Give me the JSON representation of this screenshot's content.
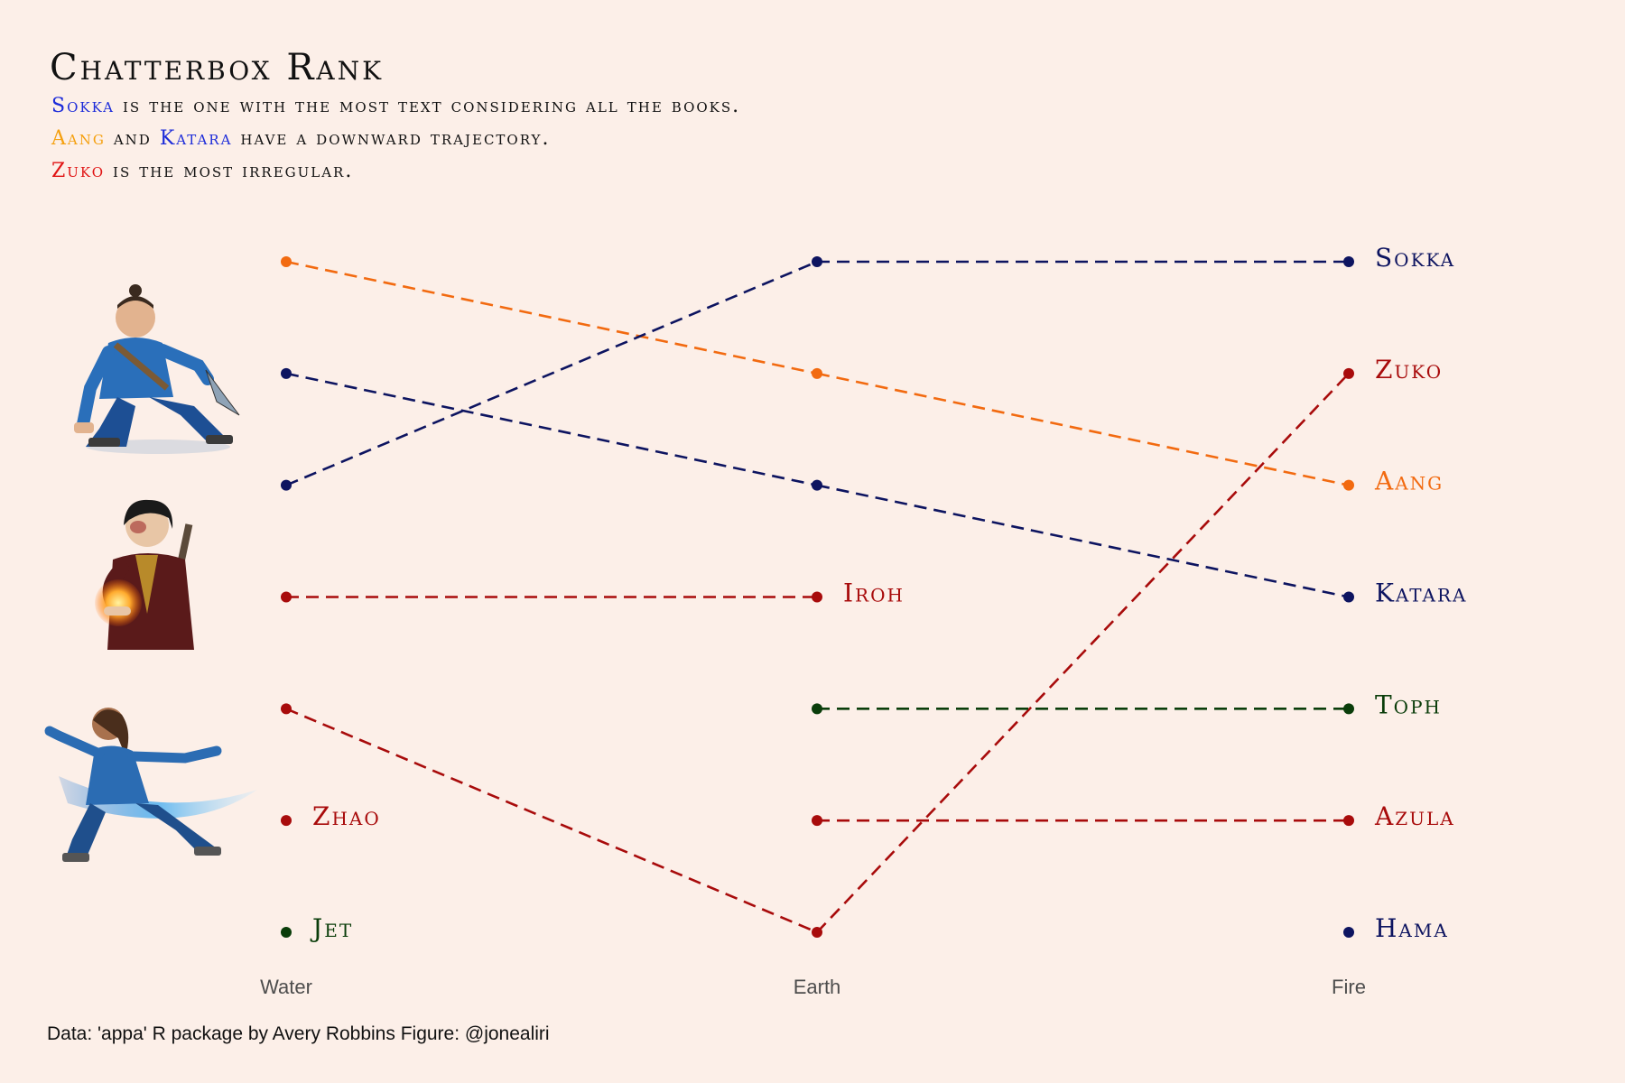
{
  "title": "Chatterbox Rank",
  "subtitle_lines": [
    [
      {
        "text": "Sokka",
        "color": "#1c2bd9"
      },
      {
        "text": " is the one with the most text considering all the books.",
        "color": "#111111"
      }
    ],
    [
      {
        "text": "Aang",
        "color": "#f5a00f"
      },
      {
        "text": " and ",
        "color": "#111111"
      },
      {
        "text": "Katara",
        "color": "#1c2bd9"
      },
      {
        "text": " have a downward trajectory.",
        "color": "#111111"
      }
    ],
    [
      {
        "text": "Zuko",
        "color": "#e01313"
      },
      {
        "text": " is the most irregular.",
        "color": "#111111"
      }
    ]
  ],
  "caption": "Data: 'appa' R package by Avery Robbins Figure: @jonealiri",
  "illustrations": [
    "sokka-figure",
    "zuko-figure",
    "katara-figure"
  ],
  "chart_data": {
    "type": "line",
    "categories": [
      "Water",
      "Earth",
      "Fire"
    ],
    "ylim": [
      1,
      7
    ],
    "y_reversed": true,
    "grid": false,
    "series": [
      {
        "name": "Aang",
        "color": "#f26a10",
        "values": [
          1,
          2,
          3
        ],
        "label_at": 2,
        "label": "Aang"
      },
      {
        "name": "Sokka",
        "color": "#0d1460",
        "values": [
          3,
          1,
          1
        ],
        "label_at": 2,
        "label": "Sokka"
      },
      {
        "name": "Katara",
        "color": "#0d1460",
        "values": [
          2,
          3,
          4
        ],
        "label_at": 2,
        "label": "Katara"
      },
      {
        "name": "Zuko",
        "color": "#a80b0b",
        "values": [
          5,
          7,
          2
        ],
        "label_at": 2,
        "label": "Zuko"
      },
      {
        "name": "Iroh",
        "color": "#a80b0b",
        "values": [
          4,
          4,
          null
        ],
        "label_at": 1,
        "label": "Iroh"
      },
      {
        "name": "Toph",
        "color": "#0a3d0a",
        "values": [
          null,
          5,
          5
        ],
        "label_at": 2,
        "label": "Toph"
      },
      {
        "name": "Zhao",
        "color": "#a80b0b",
        "values": [
          6,
          null,
          null
        ],
        "label_at": 0,
        "label": "Zhao"
      },
      {
        "name": "Azula",
        "color": "#a80b0b",
        "values": [
          null,
          6,
          6
        ],
        "label_at": 2,
        "label": "Azula"
      },
      {
        "name": "Jet",
        "color": "#0a3d0a",
        "values": [
          7,
          null,
          null
        ],
        "label_at": 0,
        "label": "Jet"
      },
      {
        "name": "Hama",
        "color": "#0d1460",
        "values": [
          null,
          null,
          7
        ],
        "label_at": 2,
        "label": "Hama"
      }
    ]
  }
}
